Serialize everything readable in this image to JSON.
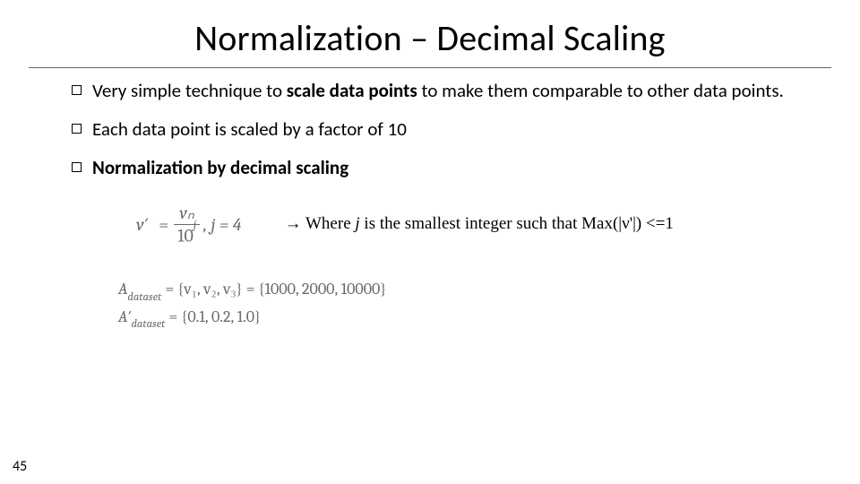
{
  "title": "Normalization – Decimal Scaling",
  "bullets": {
    "b1_pre": "Very simple technique to ",
    "b1_bold": "scale data points",
    "b1_post": " to make them comparable to other data points.",
    "b2": "Each data point is scaled by a factor of 10",
    "b3_bold": "Normalization by decimal scaling"
  },
  "formula": {
    "lhs": "v′",
    "eq1": "=",
    "num": "vₙ",
    "den_base": "10",
    "den_exp": "j",
    "tail": ", j = 4"
  },
  "where": {
    "arrow": "→",
    "text_pre": " Where ",
    "j": "j",
    "text_post": " is the smallest integer such that Max(|ν'|) <=1"
  },
  "equations": {
    "line1": "A",
    "line1_sub": "dataset",
    "line1_mid": " = {v₁, v₂, v₃} = ",
    "line1_vals": "{1000, 2000, 10000}",
    "line2": "A′",
    "line2_sub": "dataset",
    "line2_mid": " = ",
    "line2_vals": "{0.1, 0.2, 1.0}"
  },
  "page": "45",
  "colors": {
    "formula_gray": "#6a6a6a"
  }
}
